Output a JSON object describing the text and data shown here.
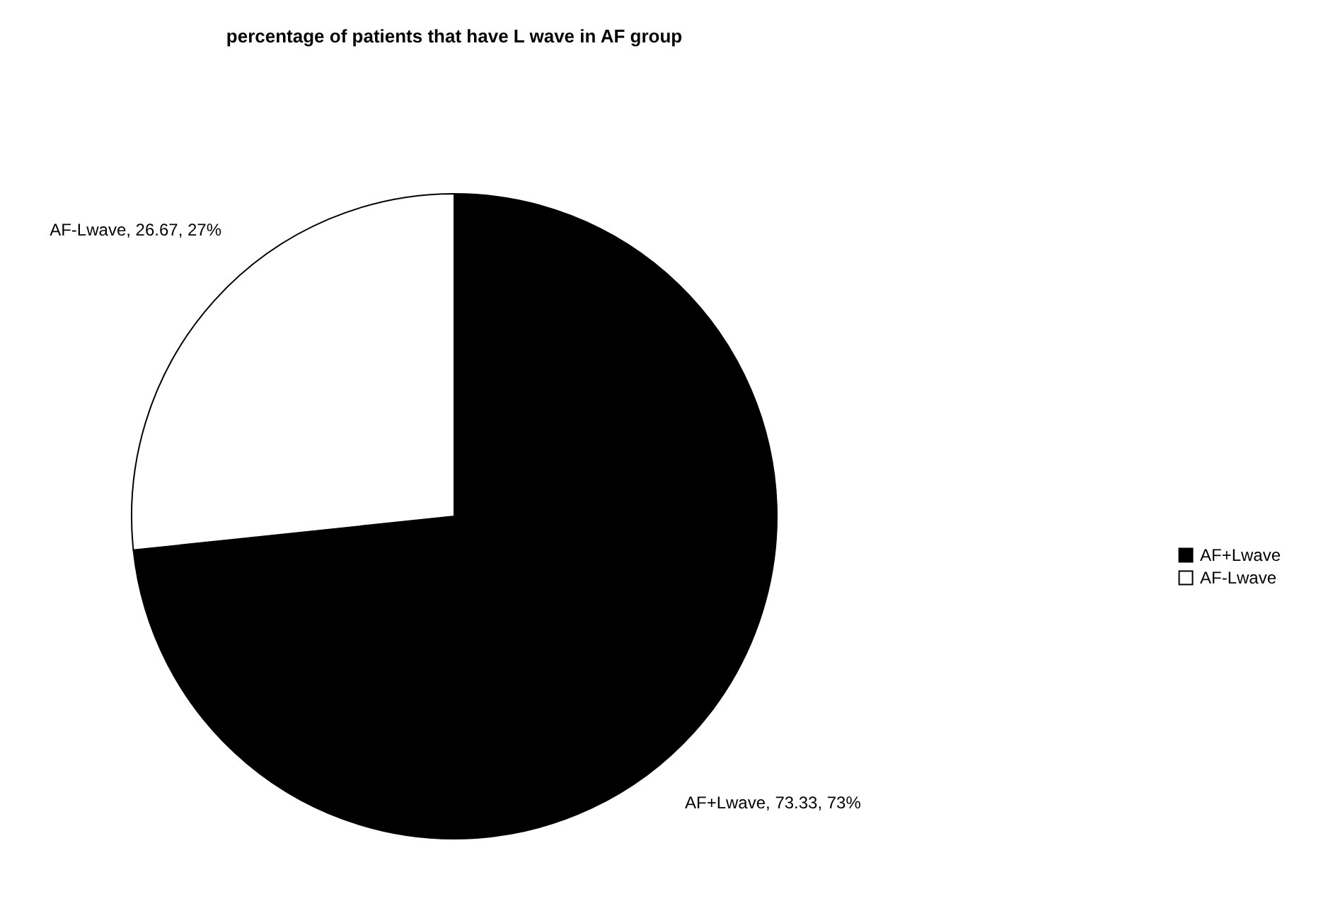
{
  "chart_data": {
    "type": "pie",
    "title": "percentage of patients that have L wave in AF group",
    "categories": [
      "AF+Lwave",
      "AF-Lwave"
    ],
    "values": [
      73.33,
      26.67
    ],
    "colors": [
      "#000000",
      "#ffffff"
    ],
    "value_labels": [
      "AF+Lwave, 73.33, 73%",
      "AF-Lwave, 26.67, 27%"
    ],
    "legend": "right"
  }
}
